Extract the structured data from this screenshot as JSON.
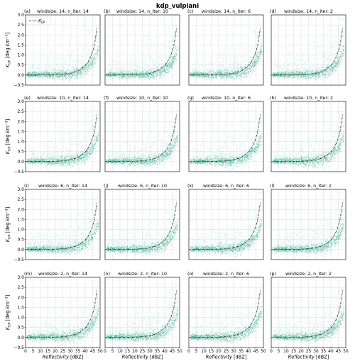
{
  "figure_title": "kdp_vulpiani",
  "chart_data": {
    "type": "scatter",
    "layout": "4x4 grid of density scatter panels with shared axes",
    "xlabel": "Reflectivity [dBZ]",
    "ylabel": "K_DP [deg km^-1]",
    "xlim": [
      0,
      50
    ],
    "ylim": [
      -0.5,
      3.0
    ],
    "xticks": [
      "0",
      "5",
      "10",
      "15",
      "20",
      "25",
      "30",
      "35",
      "40",
      "45",
      "50"
    ],
    "yticks": [
      "−0.5",
      "0.0",
      "0.5",
      "1.0",
      "1.5",
      "2.0",
      "2.5",
      "3.0"
    ],
    "grid": true,
    "legend": {
      "label": "K_DP^r",
      "placement": "upper-left",
      "panel": "a"
    },
    "colors": {
      "density_light": "#d9f2e8",
      "density_mid": "#7fd3b4",
      "density_dark": "#1b9e77",
      "curve": "#000000"
    },
    "reference_curve": {
      "style": "dash-dot",
      "x": [
        0,
        5,
        10,
        15,
        20,
        25,
        30,
        35,
        40,
        42,
        44,
        46,
        48
      ],
      "y": [
        0.0,
        0.0,
        0.01,
        0.01,
        0.02,
        0.04,
        0.09,
        0.2,
        0.47,
        0.67,
        0.97,
        1.43,
        2.35
      ]
    },
    "panels": [
      {
        "letter": "(a)",
        "title": "windsize: 14, n_iter: 14"
      },
      {
        "letter": "(b)",
        "title": "windsize: 14, n_iter: 10"
      },
      {
        "letter": "(c)",
        "title": "windsize: 14, n_iter: 6"
      },
      {
        "letter": "(d)",
        "title": "windsize: 14, n_iter: 2"
      },
      {
        "letter": "(e)",
        "title": "windsize: 10, n_iter: 14"
      },
      {
        "letter": "(f)",
        "title": "windsize: 10, n_iter: 10"
      },
      {
        "letter": "(g)",
        "title": "windsize: 10, n_iter: 6"
      },
      {
        "letter": "(h)",
        "title": "windsize: 10, n_iter: 2"
      },
      {
        "letter": "(i)",
        "title": "windsize: 6, n_iter: 14"
      },
      {
        "letter": "(j)",
        "title": "windsize: 6, n_iter: 10"
      },
      {
        "letter": "(k)",
        "title": "windsize: 6, n_iter: 6"
      },
      {
        "letter": "(l)",
        "title": "windsize: 6, n_iter: 2"
      },
      {
        "letter": "(m)",
        "title": "windsize: 2, n_iter: 14"
      },
      {
        "letter": "(n)",
        "title": "windsize: 2, n_iter: 10"
      },
      {
        "letter": "(o)",
        "title": "windsize: 2, n_iter: 6"
      },
      {
        "letter": "(p)",
        "title": "windsize: 2, n_iter: 2"
      }
    ]
  }
}
